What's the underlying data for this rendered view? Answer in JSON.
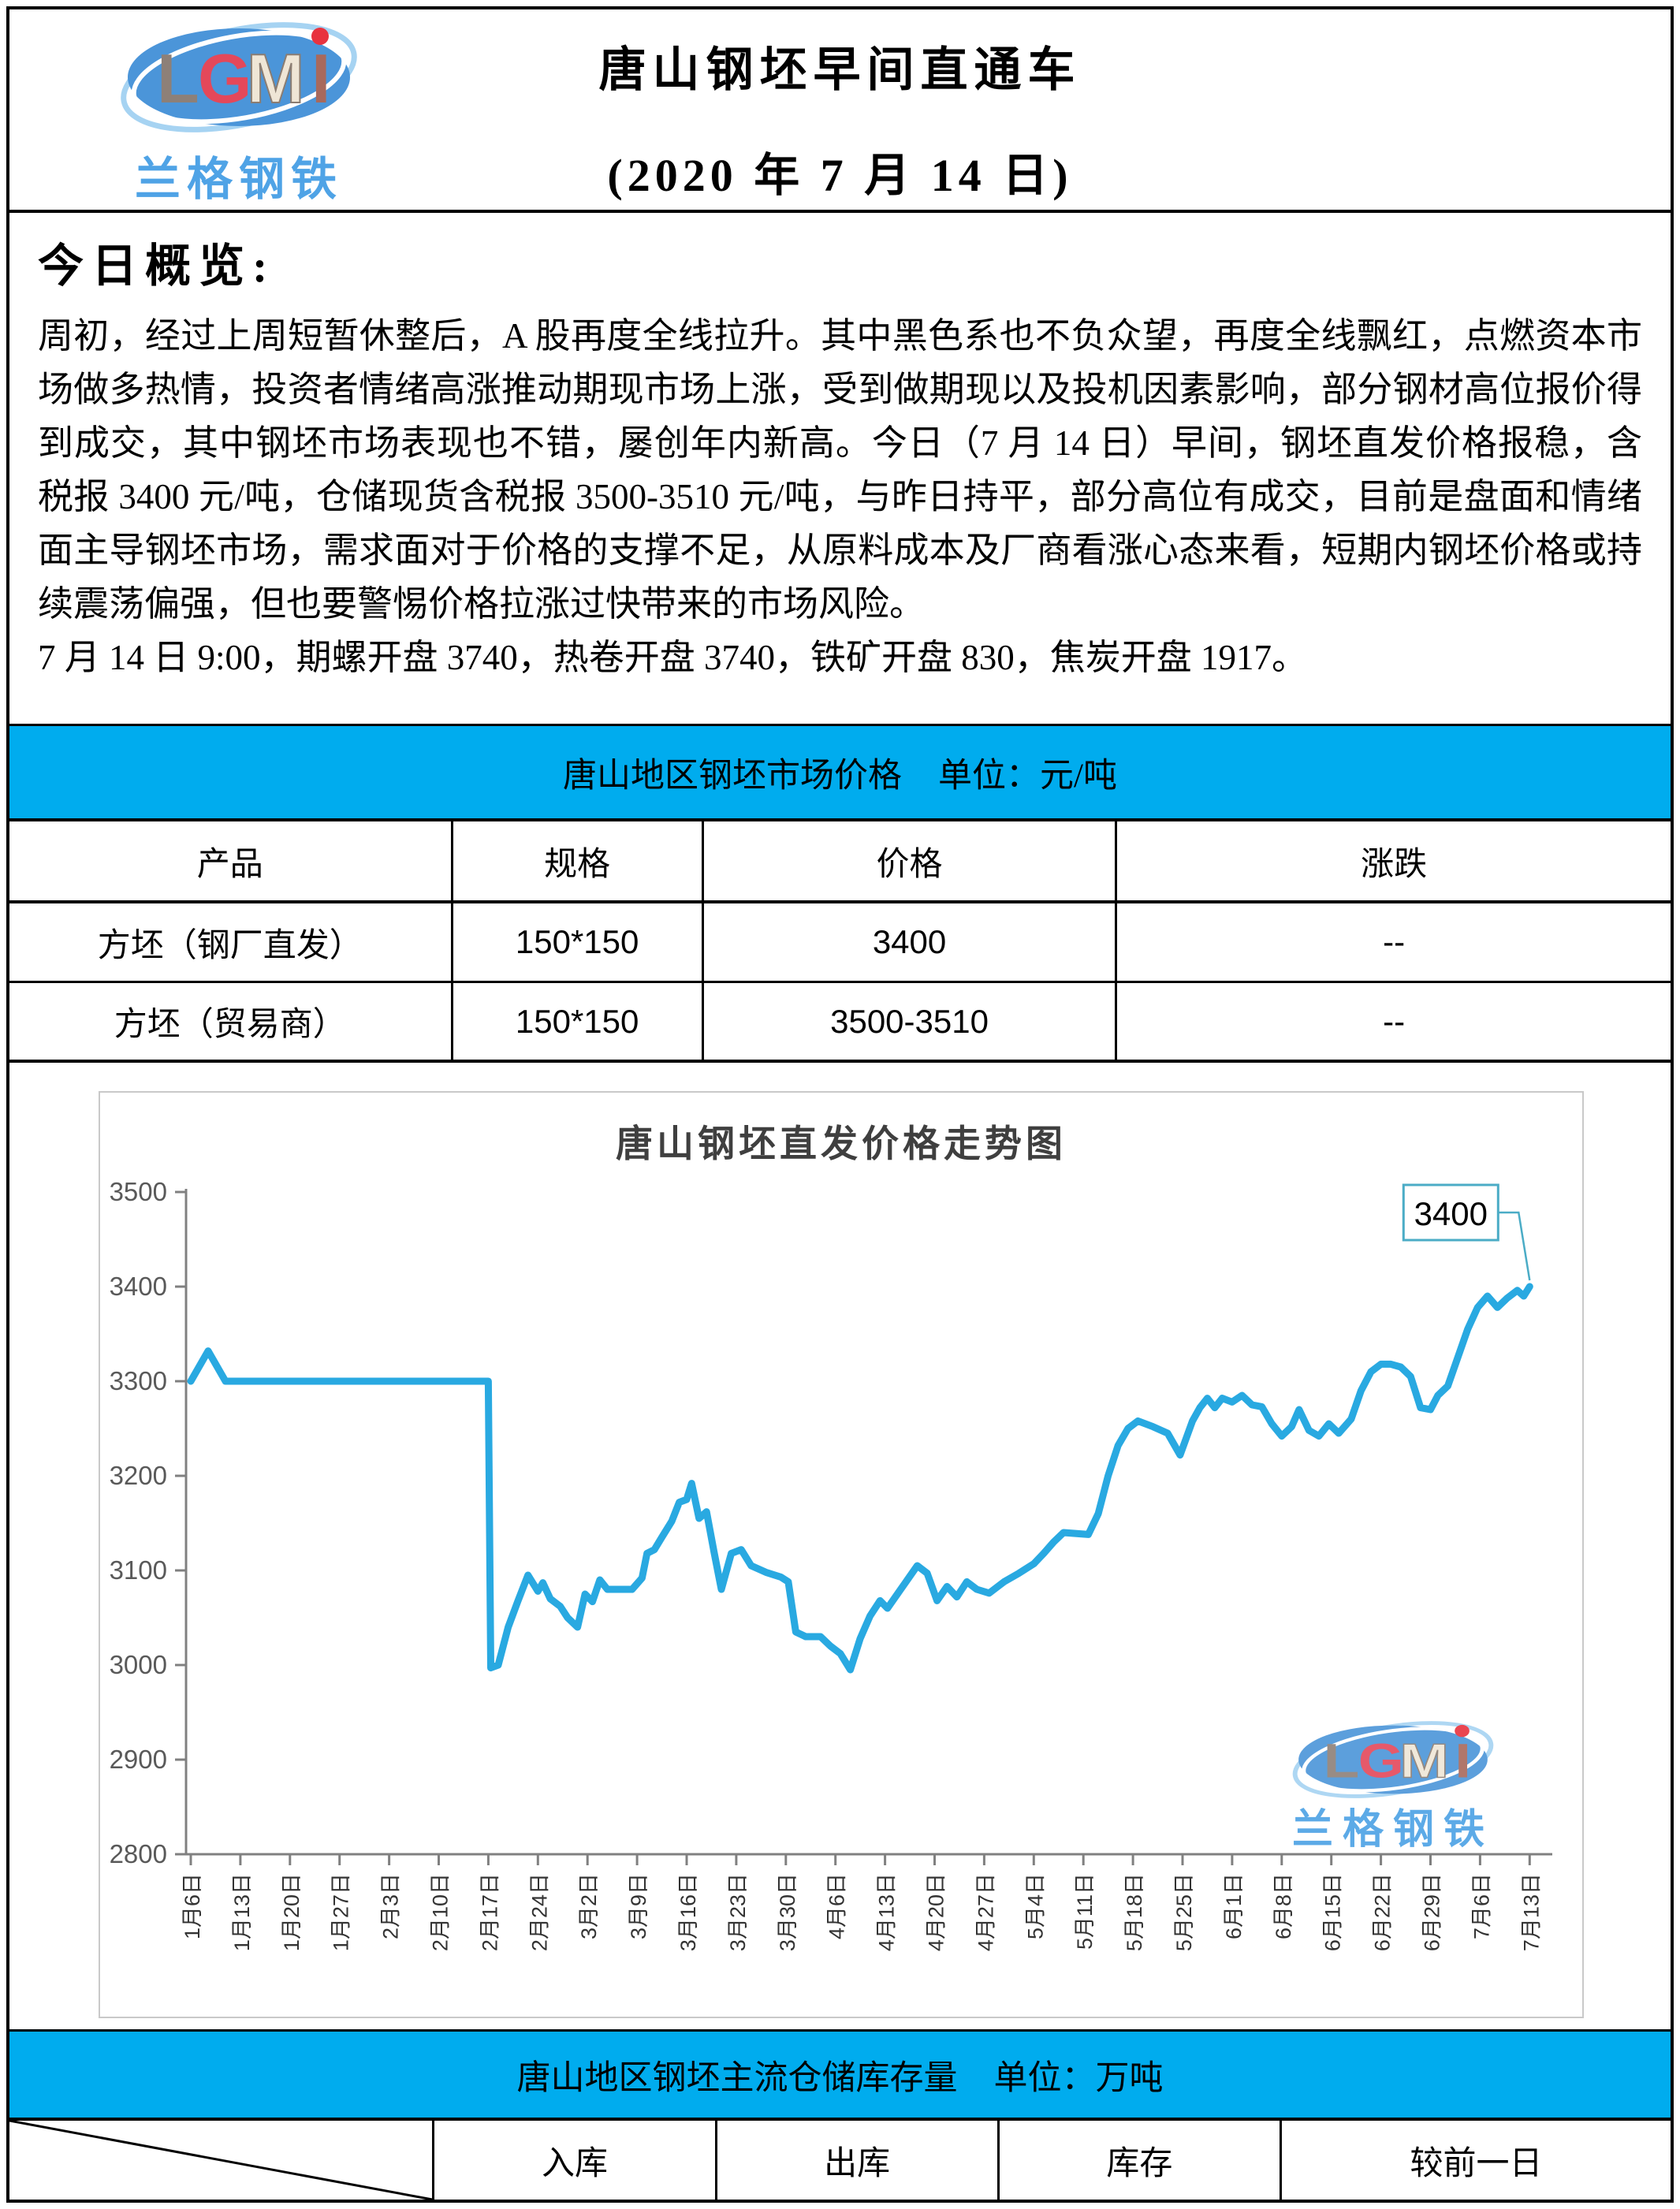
{
  "header": {
    "logo": {
      "letters": [
        {
          "ch": "L",
          "color": "#8D8078"
        },
        {
          "ch": "G",
          "color": "#E4485A"
        },
        {
          "ch": "M",
          "color": "#EFE6D6"
        },
        {
          "ch": "I",
          "color": "#A8695C"
        }
      ],
      "dot_color": "#E8333F",
      "subtext": "兰格钢铁"
    },
    "title_line1": "唐山钢坯早间直通车",
    "title_line2": "(2020 年 7 月 14 日)"
  },
  "overview": {
    "heading": "今日概览:",
    "paragraph1": "周初，经过上周短暂休整后，A 股再度全线拉升。其中黑色系也不负众望，再度全线飘红，点燃资本市场做多热情，投资者情绪高涨推动期现市场上涨，受到做期现以及投机因素影响，部分钢材高位报价得到成交，其中钢坯市场表现也不错，屡创年内新高。今日（7 月 14 日）早间，钢坯直发价格报稳，含税报 3400 元/吨，仓储现货含税报 3500-3510 元/吨，与昨日持平，部分高位有成交，目前是盘面和情绪面主导钢坯市场，需求面对于价格的支撑不足，从原料成本及厂商看涨心态来看，短期内钢坯价格或持续震荡偏强，但也要警惕价格拉涨过快带来的市场风险。",
    "paragraph2": "7 月 14 日 9:00，期螺开盘 3740，热卷开盘 3740，铁矿开盘 830，焦炭开盘 1917。"
  },
  "price_section": {
    "bar_title": "唐山地区钢坯市场价格",
    "bar_unit": "单位：元/吨",
    "table": {
      "headers": [
        "产品",
        "规格",
        "价格",
        "涨跌"
      ],
      "rows": [
        [
          "方坯（钢厂直发）",
          "150*150",
          "3400",
          "--"
        ],
        [
          "方坯（贸易商）",
          "150*150",
          "3500-3510",
          "--"
        ]
      ]
    }
  },
  "chart_data": {
    "type": "line",
    "title": "唐山钢坯直发价格走势图",
    "ylabel": "",
    "xlabel": "",
    "ylim": [
      2800,
      3500
    ],
    "yticks": [
      2800,
      2900,
      3000,
      3100,
      3200,
      3300,
      3400,
      3500
    ],
    "grid": false,
    "legend": "none",
    "categories": [
      "1月6日",
      "1月13日",
      "1月20日",
      "1月27日",
      "2月3日",
      "2月10日",
      "2月17日",
      "2月24日",
      "3月2日",
      "3月9日",
      "3月16日",
      "3月23日",
      "3月30日",
      "4月6日",
      "4月13日",
      "4月20日",
      "4月27日",
      "5月4日",
      "5月11日",
      "5月18日",
      "5月25日",
      "6月1日",
      "6月8日",
      "6月15日",
      "6月22日",
      "6月29日",
      "7月6日",
      "7月13日"
    ],
    "series": [
      {
        "name": "唐山钢坯直发价格",
        "color": "#29A9E1",
        "points": [
          [
            0,
            3300
          ],
          [
            0.35,
            3332
          ],
          [
            0.7,
            3300
          ],
          [
            6.0,
            3300
          ],
          [
            6.05,
            2997
          ],
          [
            6.2,
            3000
          ],
          [
            6.4,
            3040
          ],
          [
            6.6,
            3068
          ],
          [
            6.8,
            3095
          ],
          [
            7.0,
            3078
          ],
          [
            7.1,
            3087
          ],
          [
            7.25,
            3070
          ],
          [
            7.45,
            3062
          ],
          [
            7.6,
            3050
          ],
          [
            7.8,
            3040
          ],
          [
            7.95,
            3075
          ],
          [
            8.1,
            3067
          ],
          [
            8.25,
            3090
          ],
          [
            8.4,
            3080
          ],
          [
            8.9,
            3080
          ],
          [
            9.1,
            3092
          ],
          [
            9.2,
            3118
          ],
          [
            9.35,
            3122
          ],
          [
            9.5,
            3135
          ],
          [
            9.7,
            3152
          ],
          [
            9.85,
            3172
          ],
          [
            10.0,
            3175
          ],
          [
            10.1,
            3192
          ],
          [
            10.25,
            3155
          ],
          [
            10.4,
            3162
          ],
          [
            10.55,
            3120
          ],
          [
            10.7,
            3080
          ],
          [
            10.9,
            3118
          ],
          [
            11.1,
            3122
          ],
          [
            11.3,
            3105
          ],
          [
            11.6,
            3098
          ],
          [
            11.9,
            3093
          ],
          [
            12.05,
            3088
          ],
          [
            12.2,
            3035
          ],
          [
            12.4,
            3030
          ],
          [
            12.7,
            3030
          ],
          [
            12.9,
            3020
          ],
          [
            13.1,
            3012
          ],
          [
            13.3,
            2995
          ],
          [
            13.5,
            3028
          ],
          [
            13.7,
            3052
          ],
          [
            13.9,
            3068
          ],
          [
            14.05,
            3060
          ],
          [
            14.25,
            3075
          ],
          [
            14.45,
            3090
          ],
          [
            14.65,
            3105
          ],
          [
            14.85,
            3097
          ],
          [
            15.05,
            3068
          ],
          [
            15.25,
            3083
          ],
          [
            15.45,
            3072
          ],
          [
            15.65,
            3088
          ],
          [
            15.85,
            3080
          ],
          [
            16.1,
            3076
          ],
          [
            16.4,
            3088
          ],
          [
            16.7,
            3097
          ],
          [
            17.0,
            3107
          ],
          [
            17.2,
            3118
          ],
          [
            17.4,
            3130
          ],
          [
            17.6,
            3140
          ],
          [
            18.1,
            3138
          ],
          [
            18.3,
            3160
          ],
          [
            18.5,
            3200
          ],
          [
            18.7,
            3232
          ],
          [
            18.9,
            3250
          ],
          [
            19.1,
            3258
          ],
          [
            19.4,
            3252
          ],
          [
            19.7,
            3245
          ],
          [
            19.95,
            3222
          ],
          [
            20.2,
            3258
          ],
          [
            20.35,
            3272
          ],
          [
            20.5,
            3282
          ],
          [
            20.65,
            3272
          ],
          [
            20.8,
            3282
          ],
          [
            21.0,
            3278
          ],
          [
            21.2,
            3285
          ],
          [
            21.4,
            3275
          ],
          [
            21.6,
            3273
          ],
          [
            21.8,
            3255
          ],
          [
            22.0,
            3242
          ],
          [
            22.2,
            3252
          ],
          [
            22.35,
            3270
          ],
          [
            22.55,
            3248
          ],
          [
            22.75,
            3242
          ],
          [
            22.95,
            3255
          ],
          [
            23.15,
            3245
          ],
          [
            23.4,
            3260
          ],
          [
            23.6,
            3290
          ],
          [
            23.8,
            3310
          ],
          [
            24.0,
            3318
          ],
          [
            24.2,
            3318
          ],
          [
            24.4,
            3315
          ],
          [
            24.6,
            3305
          ],
          [
            24.8,
            3272
          ],
          [
            25.0,
            3270
          ],
          [
            25.15,
            3285
          ],
          [
            25.35,
            3295
          ],
          [
            25.55,
            3325
          ],
          [
            25.75,
            3355
          ],
          [
            25.95,
            3378
          ],
          [
            26.15,
            3390
          ],
          [
            26.35,
            3378
          ],
          [
            26.55,
            3388
          ],
          [
            26.75,
            3396
          ],
          [
            26.88,
            3390
          ],
          [
            27,
            3400
          ]
        ]
      }
    ],
    "annotation": {
      "label": "3400"
    },
    "watermark_subtext": "兰格钢铁"
  },
  "inventory_section": {
    "bar_title": "唐山地区钢坯主流仓储库存量",
    "bar_unit": "单位：万吨",
    "table": {
      "headers": [
        "",
        "入库",
        "出库",
        "库存",
        "较前一日"
      ]
    }
  },
  "colors": {
    "bar_blue": "#00ACEE",
    "line_blue": "#29A9E1",
    "callout_border": "#4BACC6",
    "logo_ellipse_blue": "#4B95D9",
    "logo_text_blue": "#4FA3E6",
    "axis_gray": "#808080",
    "label_gray": "#595959"
  }
}
